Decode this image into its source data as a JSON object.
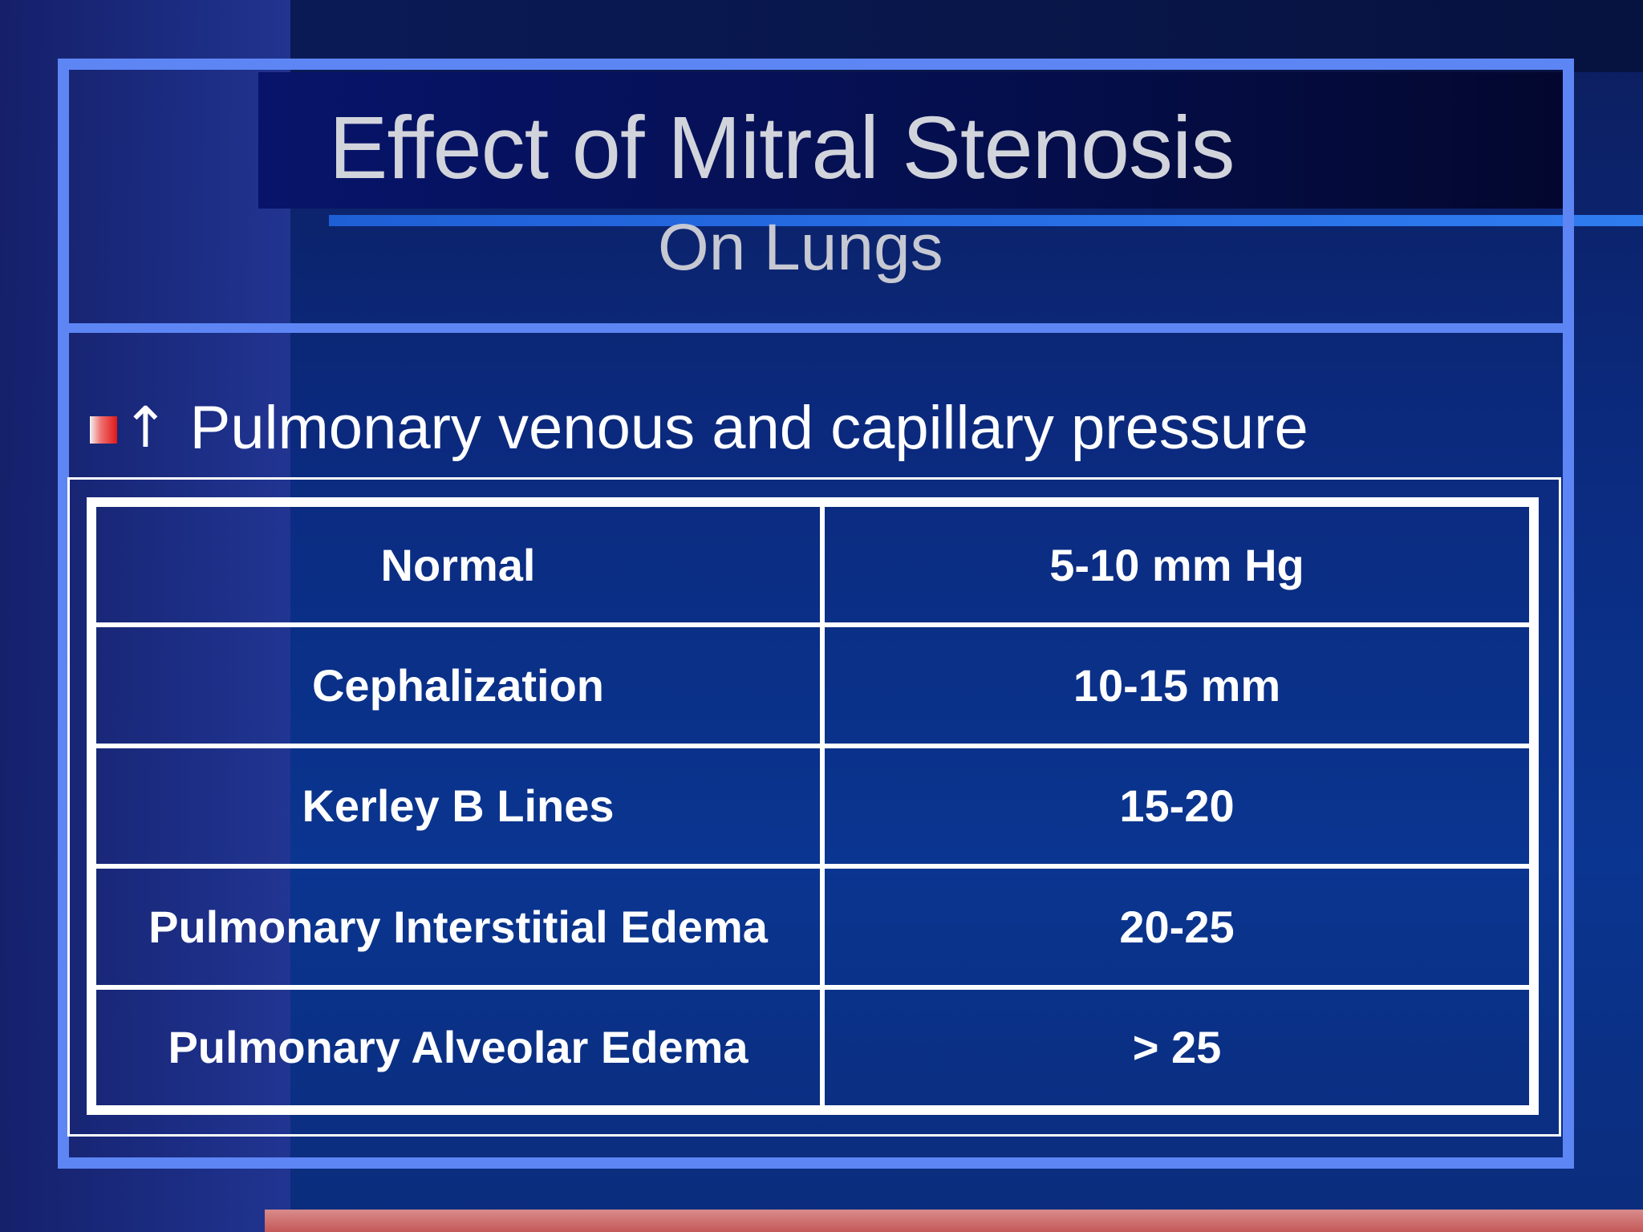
{
  "slide": {
    "title": "Effect of Mitral Stenosis",
    "subtitle": "On Lungs",
    "bullet": {
      "arrow": "↑",
      "text": "Pulmonary venous and capillary pressure"
    },
    "table": {
      "rows": [
        {
          "label": "Normal",
          "value": "5-10 mm Hg"
        },
        {
          "label": "Cephalization",
          "value": "10-15 mm"
        },
        {
          "label": "Kerley B Lines",
          "value": "15-20"
        },
        {
          "label": "Pulmonary Interstitial Edema",
          "value": "20-25"
        },
        {
          "label": "Pulmonary Alveolar Edema",
          "value": "> 25"
        }
      ]
    },
    "colors": {
      "frame": "#5d86f4",
      "background": "#0b2a7e",
      "bullet_accent": "#e01818",
      "bottom_line": "#c45858"
    }
  }
}
